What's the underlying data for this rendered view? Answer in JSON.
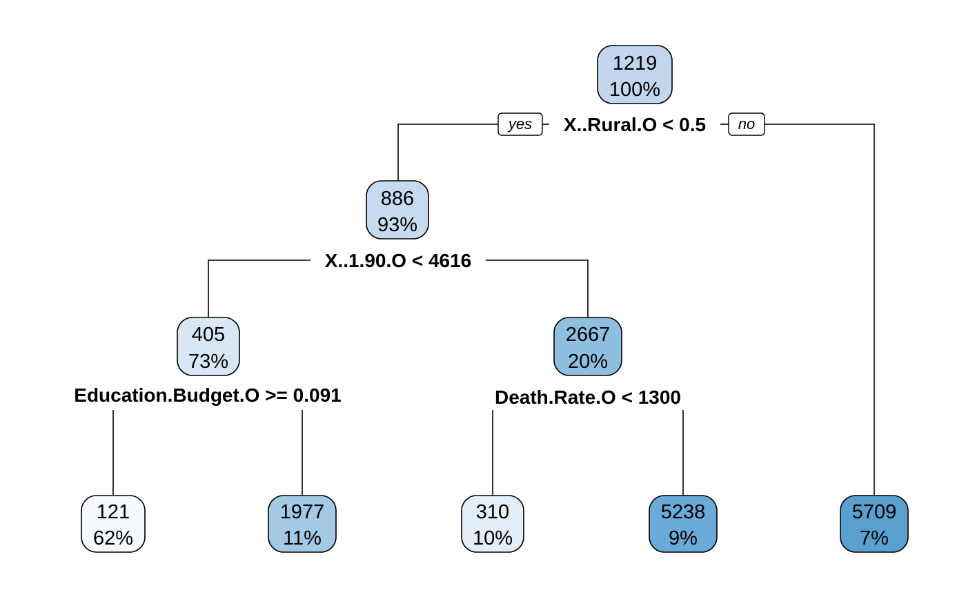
{
  "nodes": {
    "root": {
      "value": "1219",
      "percent": "100%",
      "color": "#c2d6ee"
    },
    "n2": {
      "value": "886",
      "percent": "93%",
      "color": "#c6dbef"
    },
    "n4": {
      "value": "405",
      "percent": "73%",
      "color": "#d9e7f5"
    },
    "n5": {
      "value": "2667",
      "percent": "20%",
      "color": "#8fbfdf"
    },
    "leaf_121": {
      "value": "121",
      "percent": "62%",
      "color": "#f5f9fe"
    },
    "leaf_1977": {
      "value": "1977",
      "percent": "11%",
      "color": "#a4c9e4"
    },
    "leaf_310": {
      "value": "310",
      "percent": "10%",
      "color": "#e3eef9"
    },
    "leaf_5238": {
      "value": "5238",
      "percent": "9%",
      "color": "#6aaad6"
    },
    "leaf_5709": {
      "value": "5709",
      "percent": "7%",
      "color": "#5a9fcf"
    }
  },
  "splits": {
    "root": "X..Rural.O < 0.5",
    "n2": "X..1.90.O < 4616",
    "n4": "Education.Budget.O >= 0.091",
    "n5": "Death.Rate.O < 1300"
  },
  "branch_labels": {
    "yes": "yes",
    "no": "no"
  }
}
